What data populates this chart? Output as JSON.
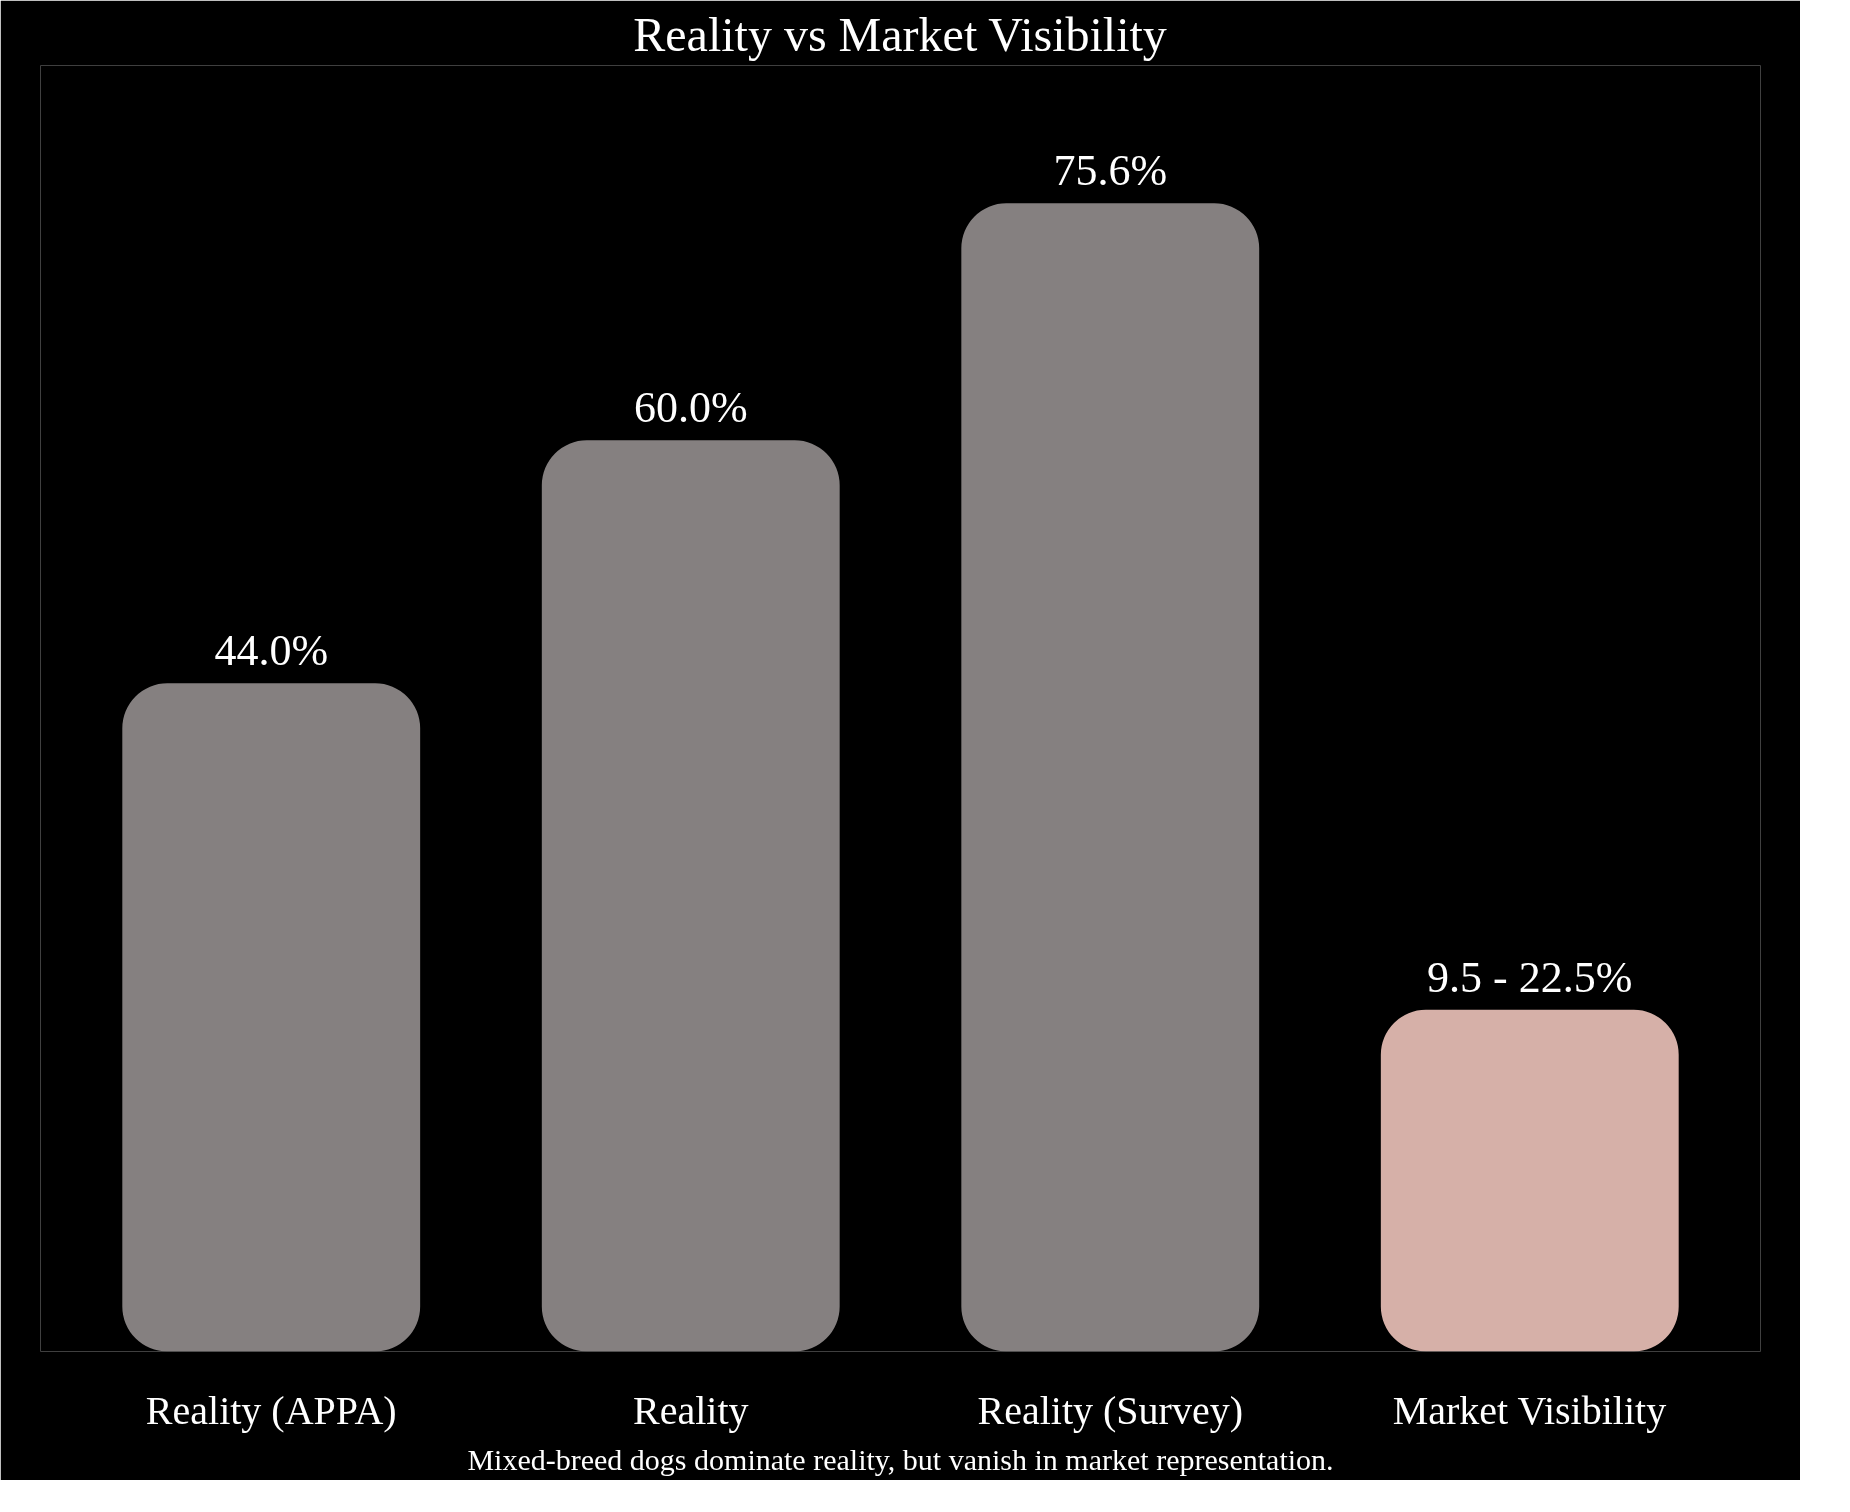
{
  "chart_data": {
    "type": "bar",
    "title": "Reality vs Market Visibility",
    "categories": [
      "Reality (APPA)",
      "Reality",
      "Reality (Survey)",
      "Market Visibility"
    ],
    "values": [
      44.0,
      60.0,
      75.6,
      22.5
    ],
    "value_labels": [
      "44.0%",
      "60.0%",
      "75.6%",
      null
    ],
    "colors": [
      "#858080",
      "#858080",
      "#858080",
      "#d6b0a8"
    ],
    "annotations": [
      {
        "text": "9.5 - 22.5%",
        "x": "Market Visibility",
        "y": 22.5
      },
      "Mixed-breed dogs dominate reality, but vanish in market representation."
    ],
    "grid": false
  }
}
